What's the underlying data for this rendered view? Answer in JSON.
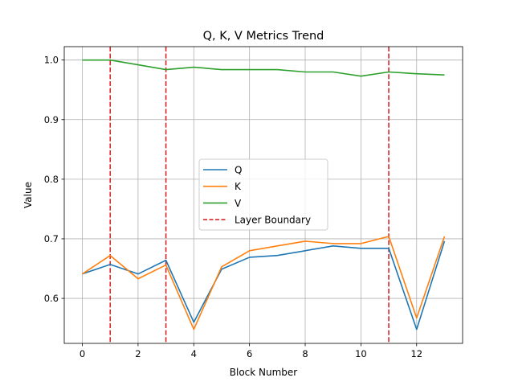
{
  "chart_data": {
    "type": "line",
    "title": "Q, K, V Metrics Trend",
    "xlabel": "Block Number",
    "ylabel": "Value",
    "xlim": [
      -0.65,
      13.65
    ],
    "ylim": [
      0.5245,
      1.0225
    ],
    "xticks": [
      0,
      2,
      4,
      6,
      8,
      10,
      12
    ],
    "yticks": [
      0.6,
      0.7,
      0.8,
      0.9,
      1.0
    ],
    "ytick_labels": [
      "0.6",
      "0.7",
      "0.8",
      "0.9",
      "1.0"
    ],
    "grid": true,
    "legend_position": "center-right",
    "x": [
      0,
      1,
      2,
      3,
      4,
      5,
      6,
      7,
      8,
      9,
      10,
      11,
      12,
      13
    ],
    "series": [
      {
        "name": "Q",
        "color": "#1f77b4",
        "values": [
          0.641,
          0.657,
          0.641,
          0.664,
          0.56,
          0.649,
          0.669,
          0.672,
          0.68,
          0.688,
          0.684,
          0.684,
          0.548,
          0.696
        ]
      },
      {
        "name": "K",
        "color": "#ff7f0e",
        "values": [
          0.641,
          0.672,
          0.633,
          0.656,
          0.548,
          0.653,
          0.68,
          0.688,
          0.696,
          0.692,
          0.692,
          0.704,
          0.567,
          0.704
        ]
      },
      {
        "name": "V",
        "color": "#2ca02c",
        "values": [
          1.0,
          1.0,
          0.992,
          0.984,
          0.988,
          0.984,
          0.984,
          0.984,
          0.98,
          0.98,
          0.973,
          0.98,
          0.977,
          0.975
        ]
      }
    ],
    "vlines": {
      "name": "Layer Boundary",
      "color": "#d62728",
      "style": "dashed",
      "x": [
        1,
        3,
        11
      ]
    }
  }
}
